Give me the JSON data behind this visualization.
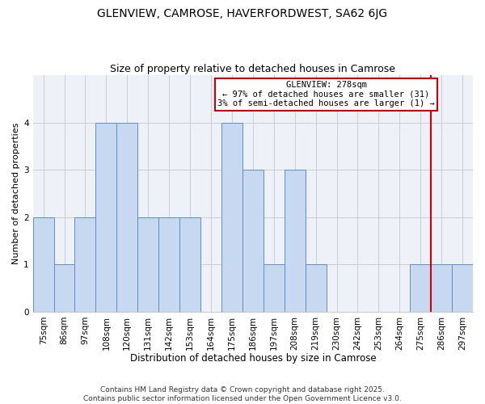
{
  "title": "GLENVIEW, CAMROSE, HAVERFORDWEST, SA62 6JG",
  "subtitle": "Size of property relative to detached houses in Camrose",
  "xlabel": "Distribution of detached houses by size in Camrose",
  "ylabel": "Number of detached properties",
  "categories": [
    "75sqm",
    "86sqm",
    "97sqm",
    "108sqm",
    "120sqm",
    "131sqm",
    "142sqm",
    "153sqm",
    "164sqm",
    "175sqm",
    "186sqm",
    "197sqm",
    "208sqm",
    "219sqm",
    "230sqm",
    "242sqm",
    "253sqm",
    "264sqm",
    "275sqm",
    "286sqm",
    "297sqm"
  ],
  "values": [
    2,
    1,
    2,
    4,
    4,
    2,
    2,
    2,
    0,
    4,
    3,
    1,
    3,
    1,
    0,
    0,
    0,
    0,
    1,
    1,
    1
  ],
  "bar_color": "#c6d9f0",
  "bar_edge_color": "#5b8fc9",
  "grid_color": "#cccccc",
  "vline_color": "#cc0000",
  "vline_x": 18.5,
  "annotation_title": "GLENVIEW: 278sqm",
  "annotation_line1": "← 97% of detached houses are smaller (31)",
  "annotation_line2": "3% of semi-detached houses are larger (1) →",
  "annotation_box_color": "#cc0000",
  "ylim": [
    0,
    5
  ],
  "yticks": [
    0,
    1,
    2,
    3,
    4
  ],
  "background_color": "#eef2f8",
  "footer_line1": "Contains HM Land Registry data © Crown copyright and database right 2025.",
  "footer_line2": "Contains public sector information licensed under the Open Government Licence v3.0.",
  "title_fontsize": 10,
  "subtitle_fontsize": 9,
  "xlabel_fontsize": 8.5,
  "ylabel_fontsize": 8,
  "tick_fontsize": 7.5,
  "annotation_fontsize": 7.5,
  "footer_fontsize": 6.5
}
